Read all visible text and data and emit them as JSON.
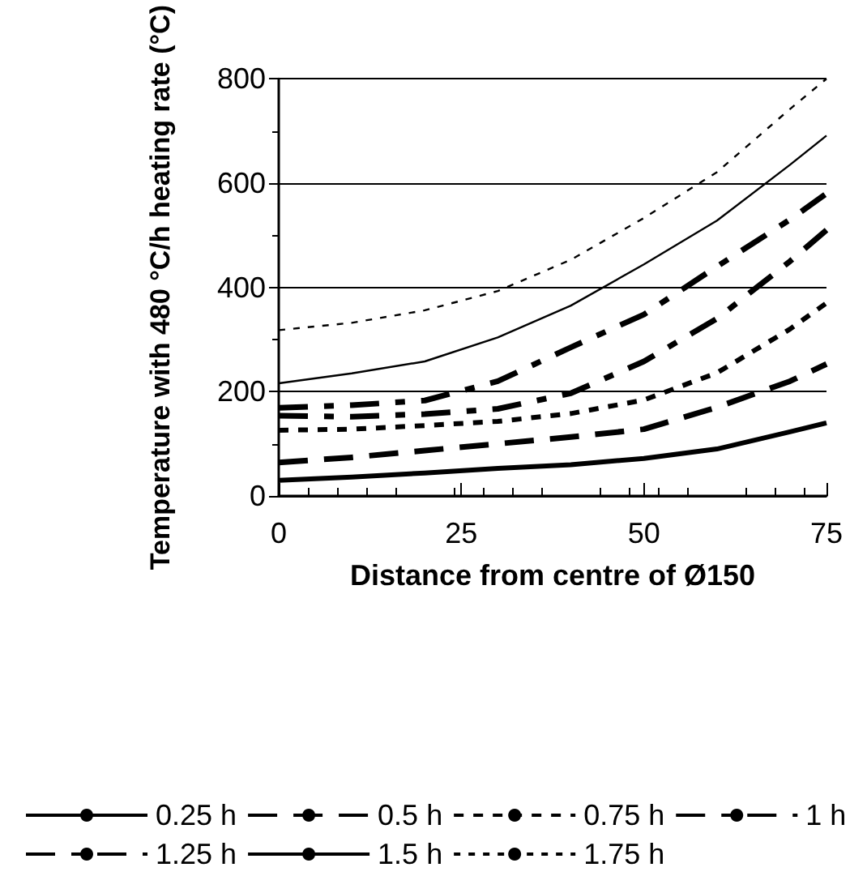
{
  "chart_data": {
    "type": "line",
    "xlabel": "Distance from centre of Ø150",
    "ylabel": "Temperature with 480 °C/h heating rate (°C)",
    "x": [
      0,
      10,
      20,
      30,
      40,
      50,
      60,
      70,
      75
    ],
    "xlim": [
      0,
      75
    ],
    "xticks": [
      0,
      25,
      50,
      75
    ],
    "ylim": [
      0,
      800
    ],
    "yticks": [
      0,
      200,
      400,
      600,
      800
    ],
    "grid": "y",
    "legend": "bottom",
    "marker": "none",
    "series": [
      {
        "name": "0.25 h",
        "color": "#000000",
        "line_style": "solid",
        "values": [
          30,
          36,
          44,
          53,
          60,
          72,
          90,
          123,
          140
        ]
      },
      {
        "name": "0.5 h",
        "color": "#000000",
        "line_style": "dashed",
        "values": [
          64,
          74,
          87,
          100,
          113,
          128,
          170,
          220,
          253
        ]
      },
      {
        "name": "0.75 h",
        "color": "#000000",
        "line_style": "dotted",
        "values": [
          126,
          128,
          135,
          143,
          158,
          184,
          236,
          320,
          370
        ]
      },
      {
        "name": "1 h",
        "color": "#000000",
        "line_style": "dashdot",
        "values": [
          154,
          152,
          157,
          167,
          197,
          258,
          340,
          450,
          510
        ]
      },
      {
        "name": "1.25 h",
        "color": "#000000",
        "line_style": "dashdot",
        "values": [
          169,
          174,
          183,
          220,
          285,
          348,
          440,
          530,
          580
        ]
      },
      {
        "name": "1.5 h",
        "color": "#000000",
        "line_style": "solid",
        "values": [
          216,
          235,
          258,
          304,
          365,
          444,
          528,
          635,
          691
        ]
      },
      {
        "name": "1.75 h",
        "color": "#000000",
        "line_style": "dotted",
        "values": [
          318,
          332,
          356,
          393,
          453,
          533,
          621,
          742,
          800
        ]
      }
    ]
  }
}
